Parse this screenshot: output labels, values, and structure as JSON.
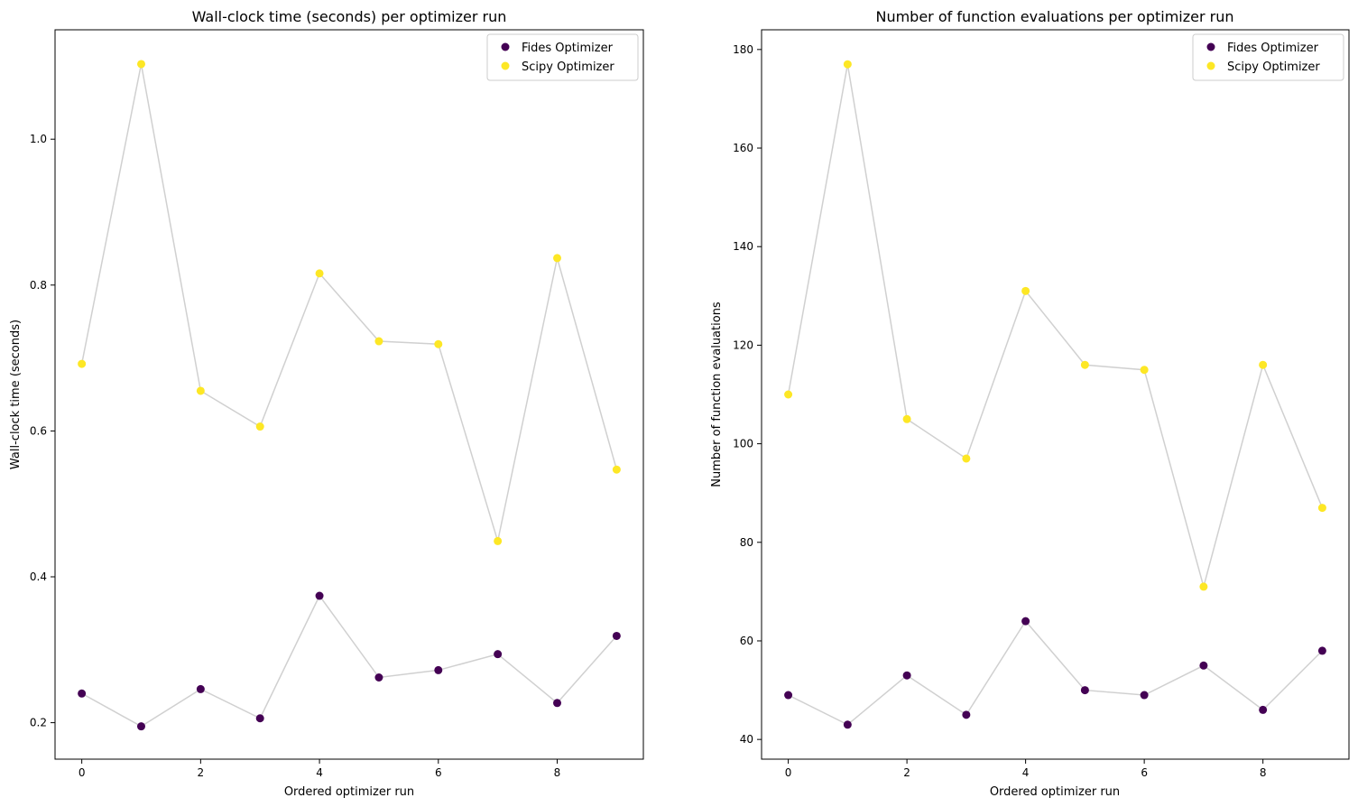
{
  "colors": {
    "fides": "#440154",
    "scipy": "#fde725",
    "connector": "#b0b0b0"
  },
  "chart_data": [
    {
      "type": "scatter",
      "title": "Wall-clock time (seconds) per optimizer run",
      "xlabel": "Ordered optimizer run",
      "ylabel": "Wall-clock time (seconds)",
      "xlim": [
        -0.45,
        9.45
      ],
      "ylim": [
        0.15,
        1.15
      ],
      "xticks": [
        0,
        2,
        4,
        6,
        8
      ],
      "yticks": [
        0.2,
        0.4,
        0.6,
        0.8,
        1.0
      ],
      "xtick_labels": [
        "0",
        "2",
        "4",
        "6",
        "8"
      ],
      "ytick_labels": [
        "0.2",
        "0.4",
        "0.6",
        "0.8",
        "1.0"
      ],
      "grid": false,
      "legend_position": "top-right",
      "x": [
        0,
        1,
        2,
        3,
        4,
        5,
        6,
        7,
        8,
        9
      ],
      "series": [
        {
          "name": "Fides Optimizer",
          "color_key": "fides",
          "values": [
            0.24,
            0.195,
            0.246,
            0.206,
            0.374,
            0.262,
            0.272,
            0.294,
            0.227,
            0.319
          ]
        },
        {
          "name": "Scipy Optimizer",
          "color_key": "scipy",
          "values": [
            0.692,
            1.103,
            0.655,
            0.606,
            0.816,
            0.723,
            0.719,
            0.449,
            0.837,
            0.547
          ]
        }
      ]
    },
    {
      "type": "scatter",
      "title": "Number of function evaluations per optimizer run",
      "xlabel": "Ordered optimizer run",
      "ylabel": "Number of function evaluations",
      "xlim": [
        -0.45,
        9.45
      ],
      "ylim": [
        36,
        184
      ],
      "xticks": [
        0,
        2,
        4,
        6,
        8
      ],
      "yticks": [
        40,
        60,
        80,
        100,
        120,
        140,
        160,
        180
      ],
      "xtick_labels": [
        "0",
        "2",
        "4",
        "6",
        "8"
      ],
      "ytick_labels": [
        "40",
        "60",
        "80",
        "100",
        "120",
        "140",
        "160",
        "180"
      ],
      "grid": false,
      "legend_position": "top-right",
      "x": [
        0,
        1,
        2,
        3,
        4,
        5,
        6,
        7,
        8,
        9
      ],
      "series": [
        {
          "name": "Fides Optimizer",
          "color_key": "fides",
          "values": [
            49,
            43,
            53,
            45,
            64,
            50,
            49,
            55,
            46,
            58
          ]
        },
        {
          "name": "Scipy Optimizer",
          "color_key": "scipy",
          "values": [
            110,
            177,
            105,
            97,
            131,
            116,
            115,
            71,
            116,
            87
          ]
        }
      ]
    }
  ]
}
